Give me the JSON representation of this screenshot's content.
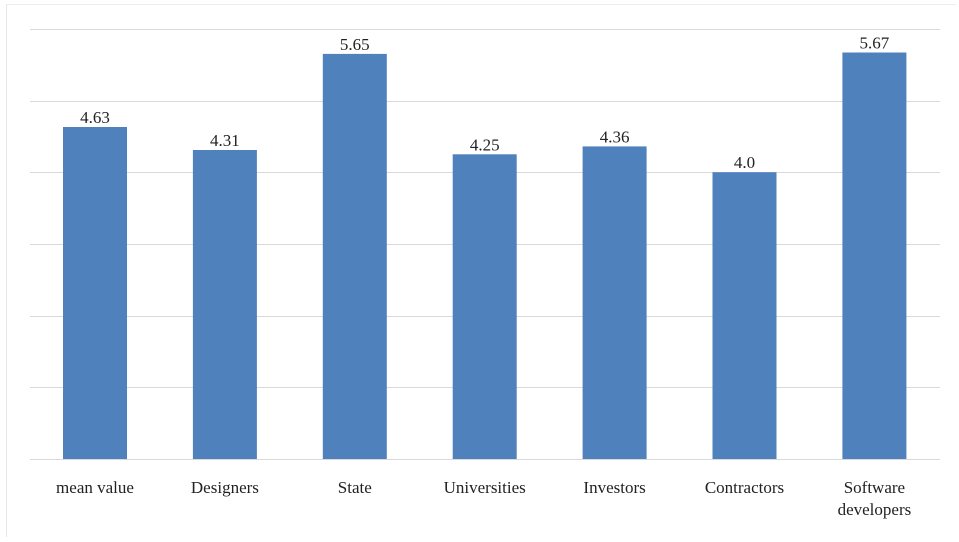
{
  "chart_data": {
    "type": "bar",
    "categories": [
      "mean value",
      "Designers",
      "State",
      "Universities",
      "Investors",
      "Contractors",
      "Software developers"
    ],
    "values": [
      4.63,
      4.31,
      5.65,
      4.25,
      4.36,
      4.0,
      5.67
    ],
    "data_labels": [
      "4.63",
      "4.31",
      "5.65",
      "4.25",
      "4.36",
      "4.0",
      "5.67"
    ],
    "ylim": [
      0,
      6.0
    ],
    "y_gridline_step": 1,
    "grid": true,
    "legend": "none",
    "bar_color": "#4f81bd",
    "gridline_color": "#d9d9d9"
  }
}
